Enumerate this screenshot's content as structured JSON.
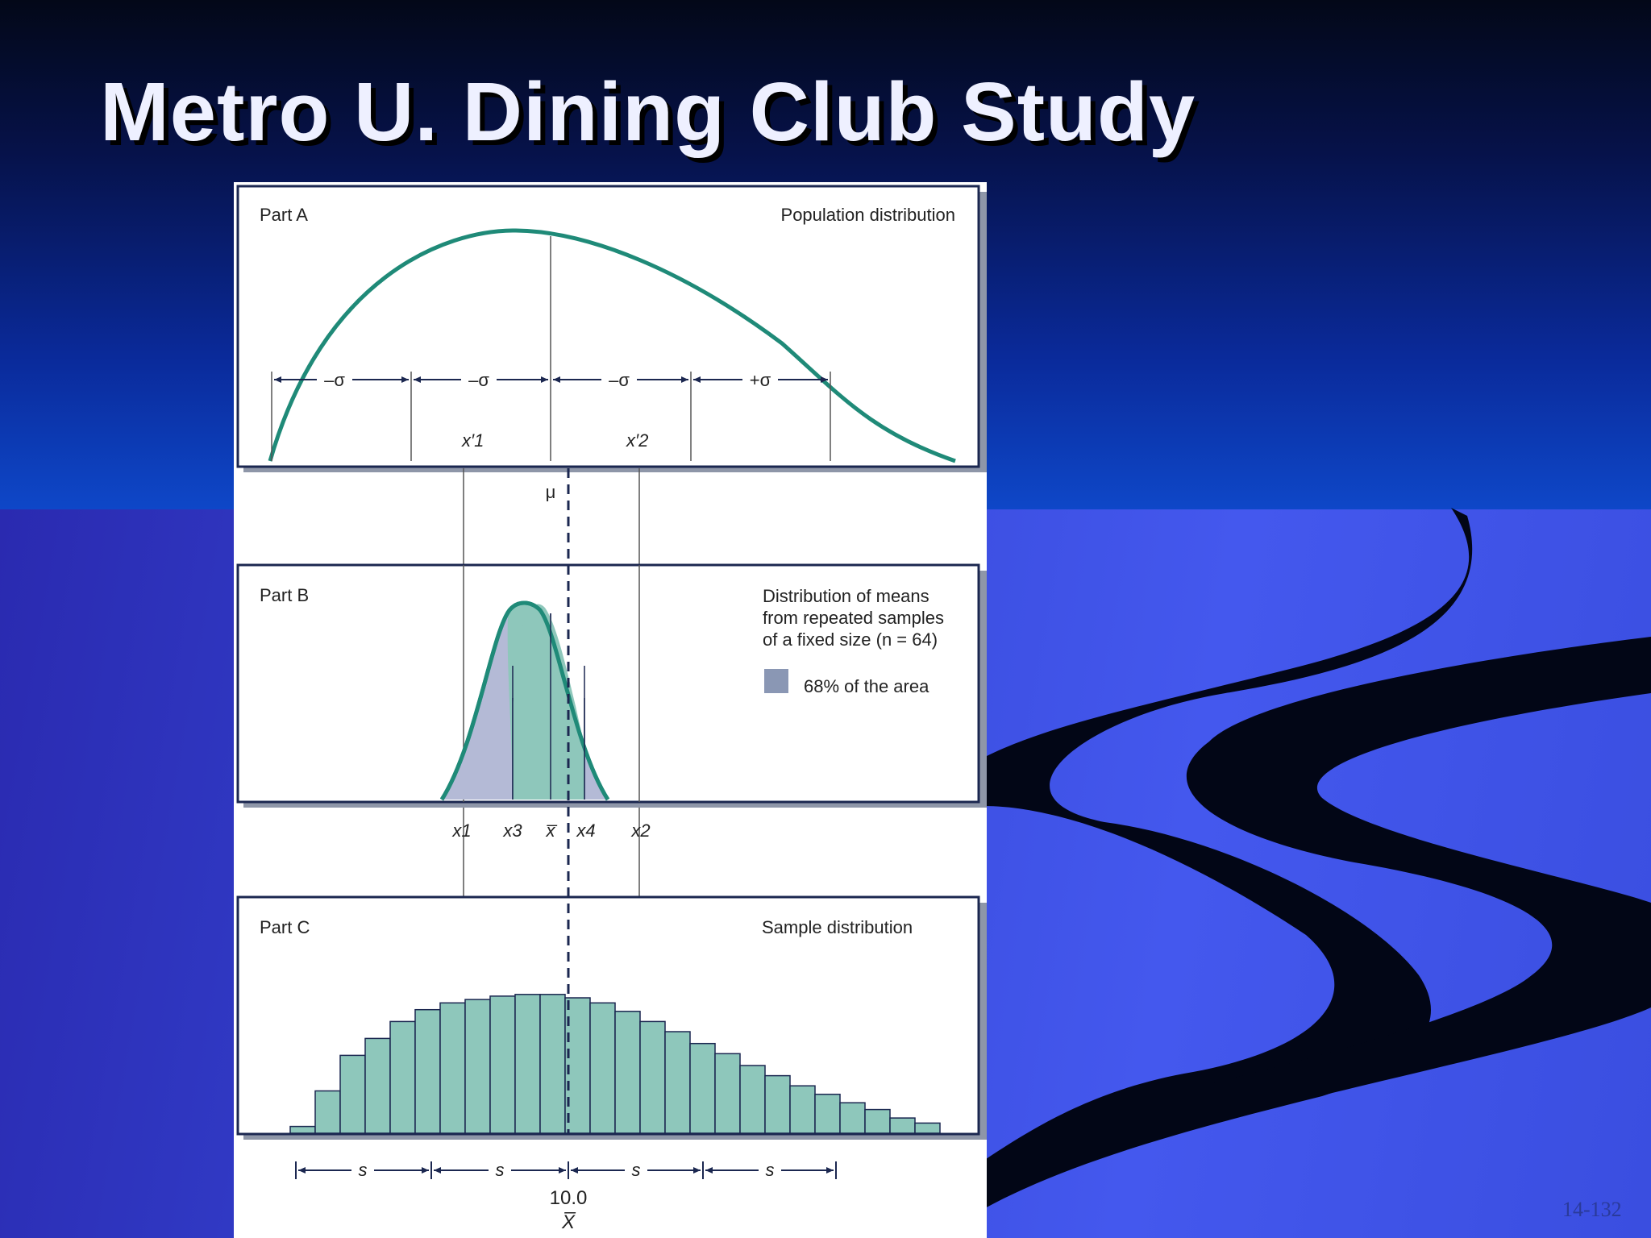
{
  "title": "Metro U. Dining Club Study",
  "slide_number": "14-132",
  "colors": {
    "curve": "#1f8a78",
    "fill_bar": "#8ec7bb",
    "fill_shade": "#b4bad6",
    "legend_swatch": "#8a97b4",
    "frame": "#1b2750"
  },
  "part_a": {
    "label": "Part A",
    "caption": "Population distribution",
    "sigma_labels": [
      "–σ",
      "–σ",
      "–σ",
      "+σ"
    ],
    "x1_label": "x′1",
    "x2_label": "x′2",
    "mu_label": "μ"
  },
  "part_b": {
    "label": "Part B",
    "caption_lines": [
      "Distribution of means",
      "from repeated samples",
      "of a fixed size (n = 64)"
    ],
    "legend_label": "68% of the area",
    "x_labels": [
      "x1",
      "x3",
      "x̅",
      "x4",
      "x2"
    ]
  },
  "part_c": {
    "label": "Part C",
    "caption": "Sample distribution",
    "s_labels": [
      "s",
      "s",
      "s",
      "s"
    ],
    "center_value": "10.0",
    "axis_symbol": "X̅"
  },
  "chart_data": {
    "type": "bar",
    "title": "Sample distribution",
    "values": [
      4,
      25,
      46,
      56,
      66,
      73,
      77,
      79,
      81,
      82,
      82,
      80,
      77,
      72,
      66,
      60,
      53,
      47,
      40,
      34,
      28,
      23,
      18,
      14,
      9,
      6
    ],
    "ylim": [
      0,
      100
    ]
  }
}
